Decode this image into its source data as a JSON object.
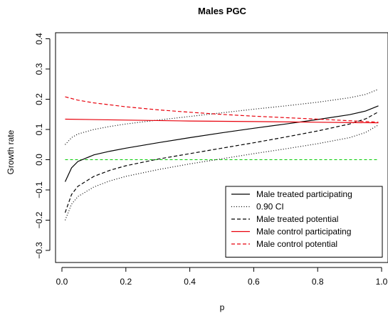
{
  "chart_data": {
    "type": "line",
    "title": "Males PGC",
    "xlabel": "p",
    "ylabel": "Growth rate",
    "xlim": [
      -0.02,
      1.02
    ],
    "ylim": [
      -0.34,
      0.42
    ],
    "xticks": [
      0.0,
      0.2,
      0.4,
      0.6,
      0.8,
      1.0
    ],
    "xtick_labels": [
      "0.0",
      "0.2",
      "0.4",
      "0.6",
      "0.8",
      "1.0"
    ],
    "yticks": [
      -0.3,
      -0.2,
      -0.1,
      0.0,
      0.1,
      0.2,
      0.3,
      0.4
    ],
    "ytick_labels": [
      "−0.3",
      "−0.2",
      "−0.1",
      "0.0",
      "0.1",
      "0.2",
      "0.3",
      "0.4"
    ],
    "grid": false,
    "legend_position": "bottom-right",
    "reference_line": {
      "y": 0.0,
      "color": "#00cc00",
      "style": "dashed"
    },
    "series": [
      {
        "name": "Male treated participating",
        "color": "#000000",
        "style": "solid",
        "x": [
          0.01,
          0.03,
          0.05,
          0.1,
          0.15,
          0.2,
          0.3,
          0.4,
          0.5,
          0.6,
          0.7,
          0.8,
          0.9,
          0.95,
          0.99
        ],
        "y": [
          -0.073,
          -0.027,
          -0.006,
          0.016,
          0.028,
          0.038,
          0.056,
          0.073,
          0.089,
          0.104,
          0.118,
          0.133,
          0.149,
          0.161,
          0.178
        ]
      },
      {
        "name": "0.90 CI",
        "color": "#000000",
        "style": "dotted",
        "x": [
          0.01,
          0.03,
          0.05,
          0.1,
          0.15,
          0.2,
          0.3,
          0.4,
          0.5,
          0.6,
          0.7,
          0.8,
          0.9,
          0.95,
          0.99
        ],
        "y": [
          0.05,
          0.073,
          0.085,
          0.1,
          0.11,
          0.118,
          0.131,
          0.143,
          0.155,
          0.167,
          0.178,
          0.19,
          0.205,
          0.216,
          0.233
        ]
      },
      {
        "name": "0.90 CI (lower)",
        "legend": false,
        "color": "#000000",
        "style": "dotted",
        "x": [
          0.01,
          0.03,
          0.05,
          0.1,
          0.15,
          0.2,
          0.3,
          0.4,
          0.5,
          0.6,
          0.7,
          0.8,
          0.9,
          0.95,
          0.99
        ],
        "y": [
          -0.2,
          -0.147,
          -0.122,
          -0.09,
          -0.07,
          -0.055,
          -0.033,
          -0.014,
          0.003,
          0.02,
          0.036,
          0.053,
          0.073,
          0.09,
          0.115
        ]
      },
      {
        "name": "Male treated potential",
        "color": "#000000",
        "style": "dashed",
        "x": [
          0.01,
          0.03,
          0.05,
          0.1,
          0.15,
          0.2,
          0.3,
          0.4,
          0.5,
          0.6,
          0.7,
          0.8,
          0.9,
          0.95,
          0.99
        ],
        "y": [
          -0.175,
          -0.115,
          -0.088,
          -0.055,
          -0.035,
          -0.02,
          0.002,
          0.02,
          0.038,
          0.056,
          0.075,
          0.095,
          0.118,
          0.135,
          0.158
        ]
      },
      {
        "name": "Male control participating",
        "color": "#e8000b",
        "style": "solid",
        "x": [
          0.01,
          0.2,
          0.4,
          0.6,
          0.8,
          0.99
        ],
        "y": [
          0.134,
          0.131,
          0.128,
          0.126,
          0.124,
          0.122
        ]
      },
      {
        "name": "Male control potential",
        "color": "#e8000b",
        "style": "dashed",
        "x": [
          0.01,
          0.05,
          0.1,
          0.2,
          0.3,
          0.4,
          0.5,
          0.6,
          0.7,
          0.8,
          0.9,
          0.99
        ],
        "y": [
          0.208,
          0.197,
          0.188,
          0.175,
          0.165,
          0.157,
          0.15,
          0.144,
          0.139,
          0.134,
          0.129,
          0.124
        ]
      }
    ]
  }
}
